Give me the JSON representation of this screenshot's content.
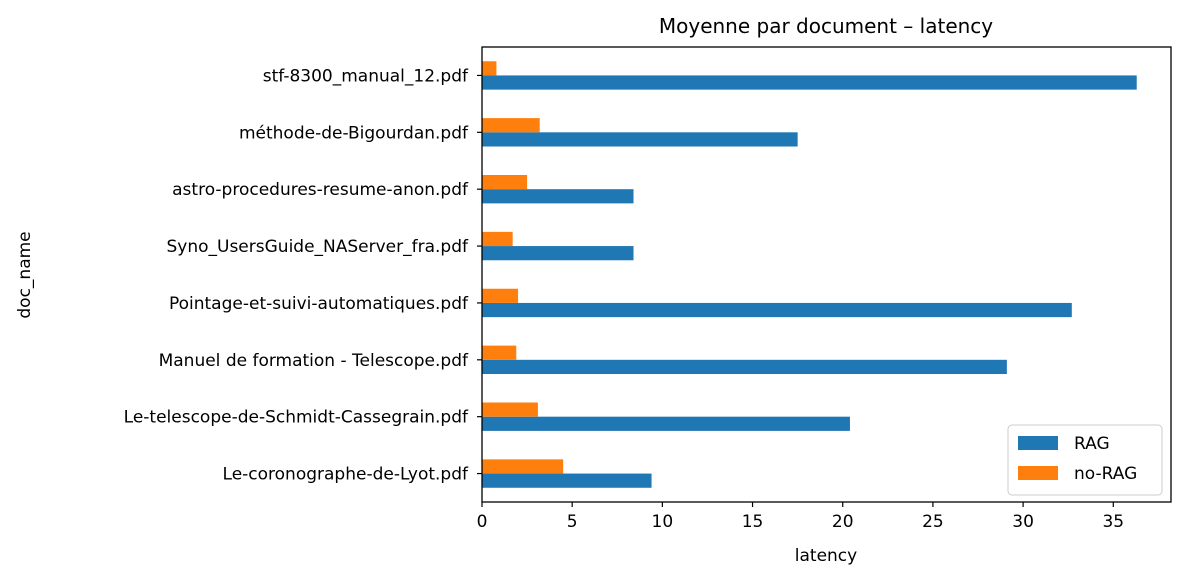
{
  "chart_data": {
    "type": "bar",
    "orientation": "horizontal",
    "title": "Moyenne par document – latency",
    "xlabel": "latency",
    "ylabel": "doc_name",
    "xlim": [
      0,
      38.2
    ],
    "xticks": [
      0,
      5,
      10,
      15,
      20,
      25,
      30,
      35
    ],
    "categories": [
      "stf-8300_manual_12.pdf",
      "méthode-de-Bigourdan.pdf",
      "astro-procedures-resume-anon.pdf",
      "Syno_UsersGuide_NAServer_fra.pdf",
      "Pointage-et-suivi-automatiques.pdf",
      "Manuel de formation - Telescope.pdf",
      "Le-telescope-de-Schmidt-Cassegrain.pdf",
      "Le-coronographe-de-Lyot.pdf"
    ],
    "series": [
      {
        "name": "RAG",
        "color": "#1f77b4",
        "values": [
          36.3,
          17.5,
          8.4,
          8.4,
          32.7,
          29.1,
          20.4,
          9.4
        ]
      },
      {
        "name": "no-RAG",
        "color": "#ff7f0e",
        "values": [
          0.8,
          3.2,
          2.5,
          1.7,
          2.0,
          1.9,
          3.1,
          4.5
        ]
      }
    ],
    "legend_position": "bottom-right",
    "grid": false
  }
}
